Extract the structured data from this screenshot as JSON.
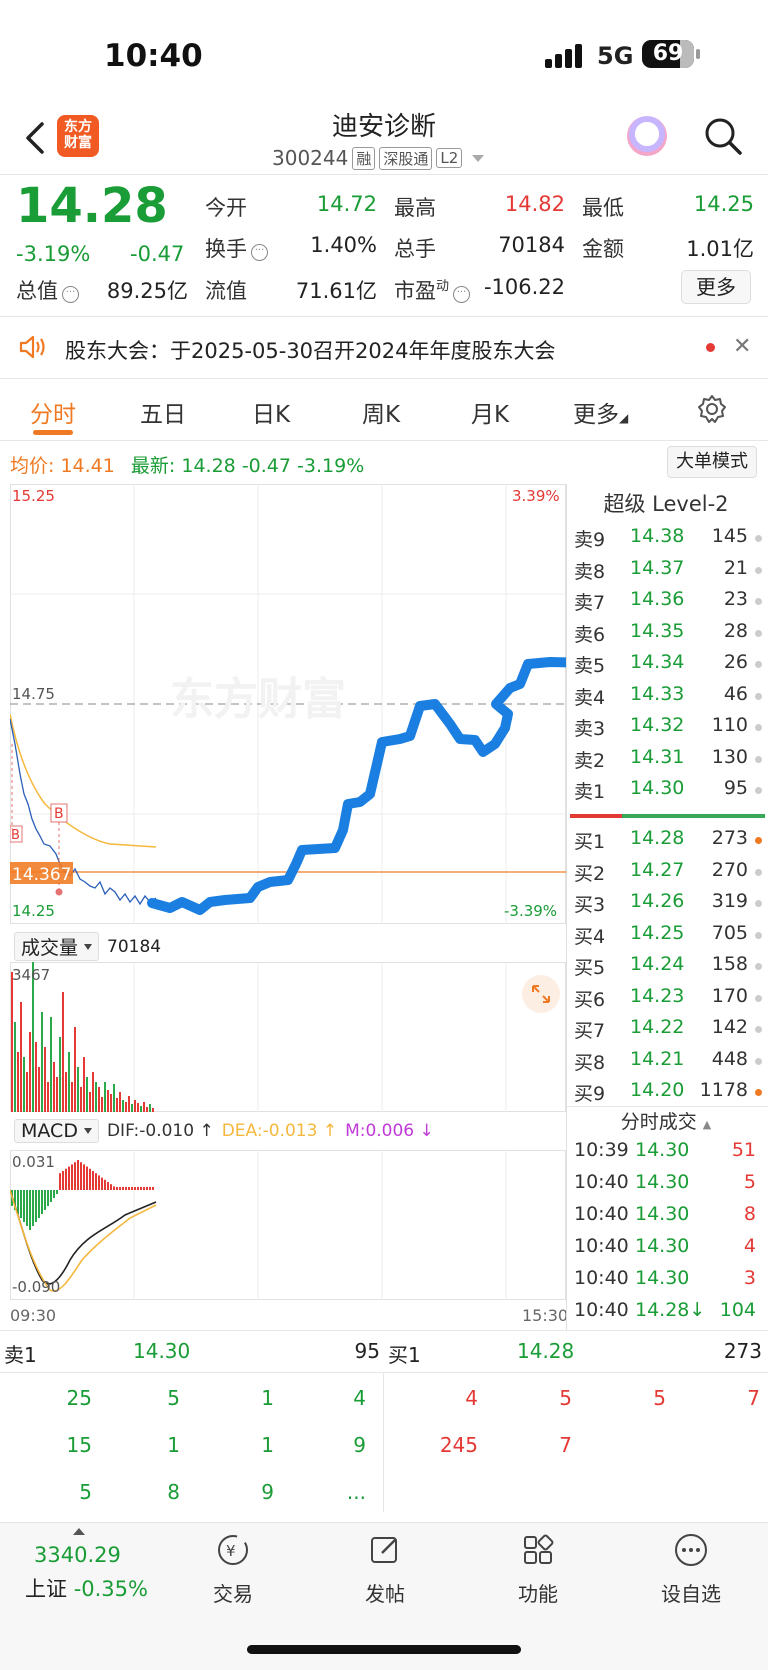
{
  "status": {
    "time": "10:40",
    "network": "5G",
    "battery": "69"
  },
  "header": {
    "logo_text_1": "东方",
    "logo_text_2": "财富",
    "stock_name": "迪安诊断",
    "stock_code": "300244",
    "tags": [
      "融",
      "深股通",
      "L2"
    ]
  },
  "quote": {
    "price": "14.28",
    "change_pct": "-3.19%",
    "change_amt": "-0.47",
    "open_label": "今开",
    "open": "14.72",
    "high_label": "最高",
    "high": "14.82",
    "low_label": "最低",
    "low": "14.25",
    "turnover_label": "换手",
    "turnover": "1.40%",
    "volume_label": "总手",
    "volume": "70184",
    "amount_label": "金额",
    "amount": "1.01亿",
    "mktcap_label": "总值",
    "mktcap": "89.25亿",
    "float_label": "流值",
    "float": "71.61亿",
    "pe_label": "市盈",
    "pe_sup": "动",
    "pe": "-106.22",
    "more": "更多"
  },
  "notice": {
    "text": "股东大会：于2025-05-30召开2024年年度股东大会"
  },
  "tabs": [
    "分时",
    "五日",
    "日K",
    "周K",
    "月K",
    "更多"
  ],
  "avgline": {
    "avg_label": "均价:",
    "avg": "14.41",
    "last_label": "最新:",
    "last": "14.28",
    "chg": "-0.47",
    "pct": "-3.19%",
    "bigmode": "大单模式"
  },
  "chart_labels": {
    "top_left": "15.25",
    "top_right": "3.39%",
    "mid_ref": "14.75",
    "cur_price": "14.367",
    "bottom_left": "14.25",
    "bottom_right": "-3.39%",
    "watermark": "东方财富",
    "b_marker": "B",
    "vol_label": "成交量",
    "vol_total": "70184",
    "vol_max": "3467",
    "macd_label": "MACD",
    "dif": "DIF:-0.010 ↑",
    "dea": "DEA:-0.013 ↑",
    "m": "M:0.006 ↓",
    "macd_top": "0.031",
    "macd_bottom": "-0.090",
    "time_start": "09:30",
    "time_end": "15:30"
  },
  "orderbook": {
    "title": "超级 Level-2",
    "asks": [
      {
        "label": "卖9",
        "price": "14.38",
        "vol": "145"
      },
      {
        "label": "卖8",
        "price": "14.37",
        "vol": "21"
      },
      {
        "label": "卖7",
        "price": "14.36",
        "vol": "23"
      },
      {
        "label": "卖6",
        "price": "14.35",
        "vol": "28"
      },
      {
        "label": "卖5",
        "price": "14.34",
        "vol": "26"
      },
      {
        "label": "卖4",
        "price": "14.33",
        "vol": "46"
      },
      {
        "label": "卖3",
        "price": "14.32",
        "vol": "110"
      },
      {
        "label": "卖2",
        "price": "14.31",
        "vol": "130"
      },
      {
        "label": "卖1",
        "price": "14.30",
        "vol": "95"
      }
    ],
    "bids": [
      {
        "label": "买1",
        "price": "14.28",
        "vol": "273"
      },
      {
        "label": "买2",
        "price": "14.27",
        "vol": "270"
      },
      {
        "label": "买3",
        "price": "14.26",
        "vol": "319"
      },
      {
        "label": "买4",
        "price": "14.25",
        "vol": "705"
      },
      {
        "label": "买5",
        "price": "14.24",
        "vol": "158"
      },
      {
        "label": "买6",
        "price": "14.23",
        "vol": "170"
      },
      {
        "label": "买7",
        "price": "14.22",
        "vol": "142"
      },
      {
        "label": "买8",
        "price": "14.21",
        "vol": "448"
      },
      {
        "label": "买9",
        "price": "14.20",
        "vol": "1178"
      }
    ],
    "trades_title": "分时成交",
    "trades": [
      {
        "time": "10:39",
        "price": "14.30",
        "vol": "51"
      },
      {
        "time": "10:40",
        "price": "14.30",
        "vol": "5"
      },
      {
        "time": "10:40",
        "price": "14.30",
        "vol": "8"
      },
      {
        "time": "10:40",
        "price": "14.30",
        "vol": "4"
      },
      {
        "time": "10:40",
        "price": "14.30",
        "vol": "3"
      },
      {
        "time": "10:40",
        "price": "14.28↓",
        "vol": "104"
      }
    ]
  },
  "level1": {
    "sell_label": "卖1",
    "sell_price": "14.30",
    "sell_vol": "95",
    "buy_label": "买1",
    "buy_price": "14.28",
    "buy_vol": "273",
    "sell_queue": [
      "25",
      "5",
      "1",
      "4",
      "15",
      "1",
      "1",
      "9",
      "5",
      "8",
      "9",
      "..."
    ],
    "buy_queue": [
      "4",
      "5",
      "5",
      "7",
      "245",
      "7"
    ]
  },
  "bottom": {
    "index_value": "3340.29",
    "index_label": "上证",
    "index_pct": "-0.35%",
    "nav": [
      "交易",
      "发帖",
      "功能",
      "设自选"
    ]
  }
}
